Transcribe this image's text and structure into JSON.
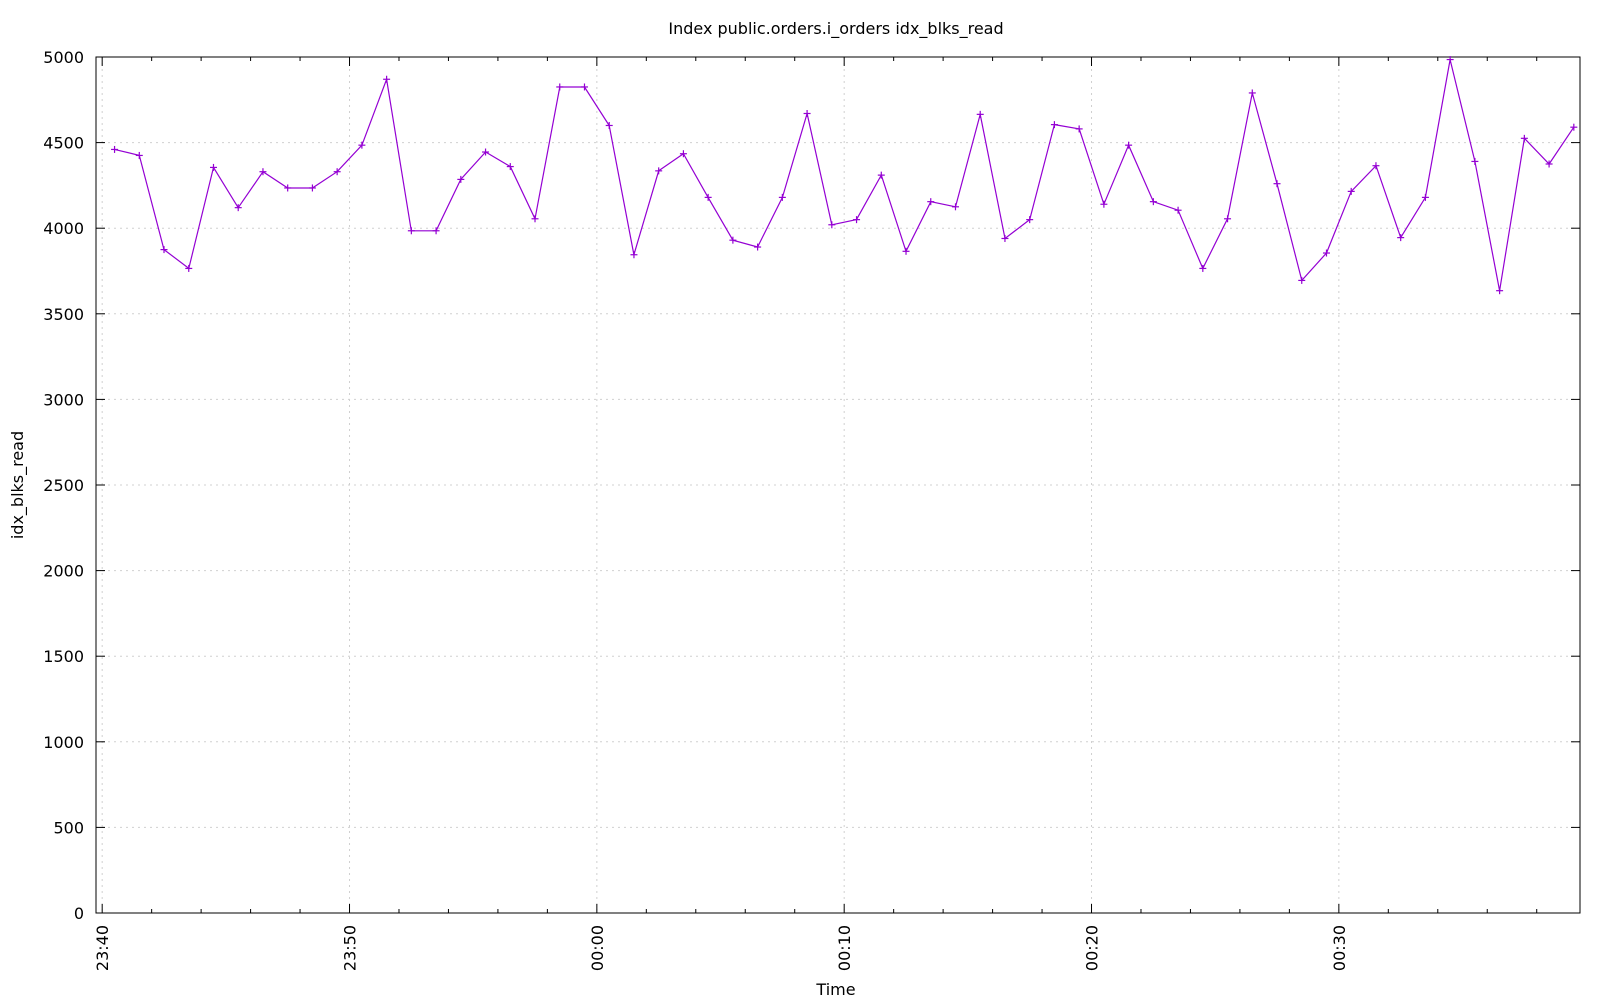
{
  "chart_data": {
    "type": "line",
    "title": "Index public.orders.i_orders idx_blks_read",
    "xlabel": "Time",
    "ylabel": "idx_blks_read",
    "ylim": [
      0,
      5000
    ],
    "yticks": [
      0,
      500,
      1000,
      1500,
      2000,
      2500,
      3000,
      3500,
      4000,
      4500,
      5000
    ],
    "xlim": [
      "23:39:45",
      "00:39:45"
    ],
    "xticks": [
      "23:40",
      "23:50",
      "00:00",
      "00:10",
      "00:20",
      "00:30"
    ],
    "grid": true,
    "series": [
      {
        "color": "#9400d3",
        "x": [
          "23:40:30",
          "23:41:30",
          "23:42:30",
          "23:43:30",
          "23:44:30",
          "23:45:30",
          "23:46:30",
          "23:47:30",
          "23:48:30",
          "23:49:30",
          "23:50:30",
          "23:51:30",
          "23:52:30",
          "23:53:30",
          "23:54:30",
          "23:55:30",
          "23:56:30",
          "23:57:30",
          "23:58:30",
          "23:59:30",
          "00:00:30",
          "00:01:30",
          "00:02:30",
          "00:03:30",
          "00:04:30",
          "00:05:30",
          "00:06:30",
          "00:07:30",
          "00:08:30",
          "00:09:30",
          "00:10:30",
          "00:11:30",
          "00:12:30",
          "00:13:30",
          "00:14:30",
          "00:15:30",
          "00:16:30",
          "00:17:30",
          "00:18:30",
          "00:19:30",
          "00:20:30",
          "00:21:30",
          "00:22:30",
          "00:23:30",
          "00:24:30",
          "00:25:30",
          "00:26:30",
          "00:27:30",
          "00:28:30",
          "00:29:30",
          "00:30:30",
          "00:31:30",
          "00:32:30",
          "00:33:30",
          "00:34:30",
          "00:35:30",
          "00:36:30",
          "00:37:30",
          "00:38:30",
          "00:39:30"
        ],
        "values": [
          4460,
          4425,
          3875,
          3765,
          4355,
          4120,
          4330,
          4235,
          4235,
          4330,
          4485,
          4870,
          3985,
          3985,
          4285,
          4445,
          4360,
          4055,
          4825,
          4825,
          4600,
          3845,
          4335,
          4435,
          4180,
          3930,
          3890,
          4180,
          4670,
          4020,
          4050,
          4310,
          3865,
          4155,
          4125,
          4665,
          3940,
          4050,
          4605,
          4580,
          4140,
          4485,
          4155,
          4105,
          3765,
          4055,
          4790,
          4260,
          3695,
          3855,
          4215,
          4365,
          3945,
          4180,
          4985,
          4390,
          3635,
          4525,
          4375,
          4590
        ]
      }
    ]
  }
}
